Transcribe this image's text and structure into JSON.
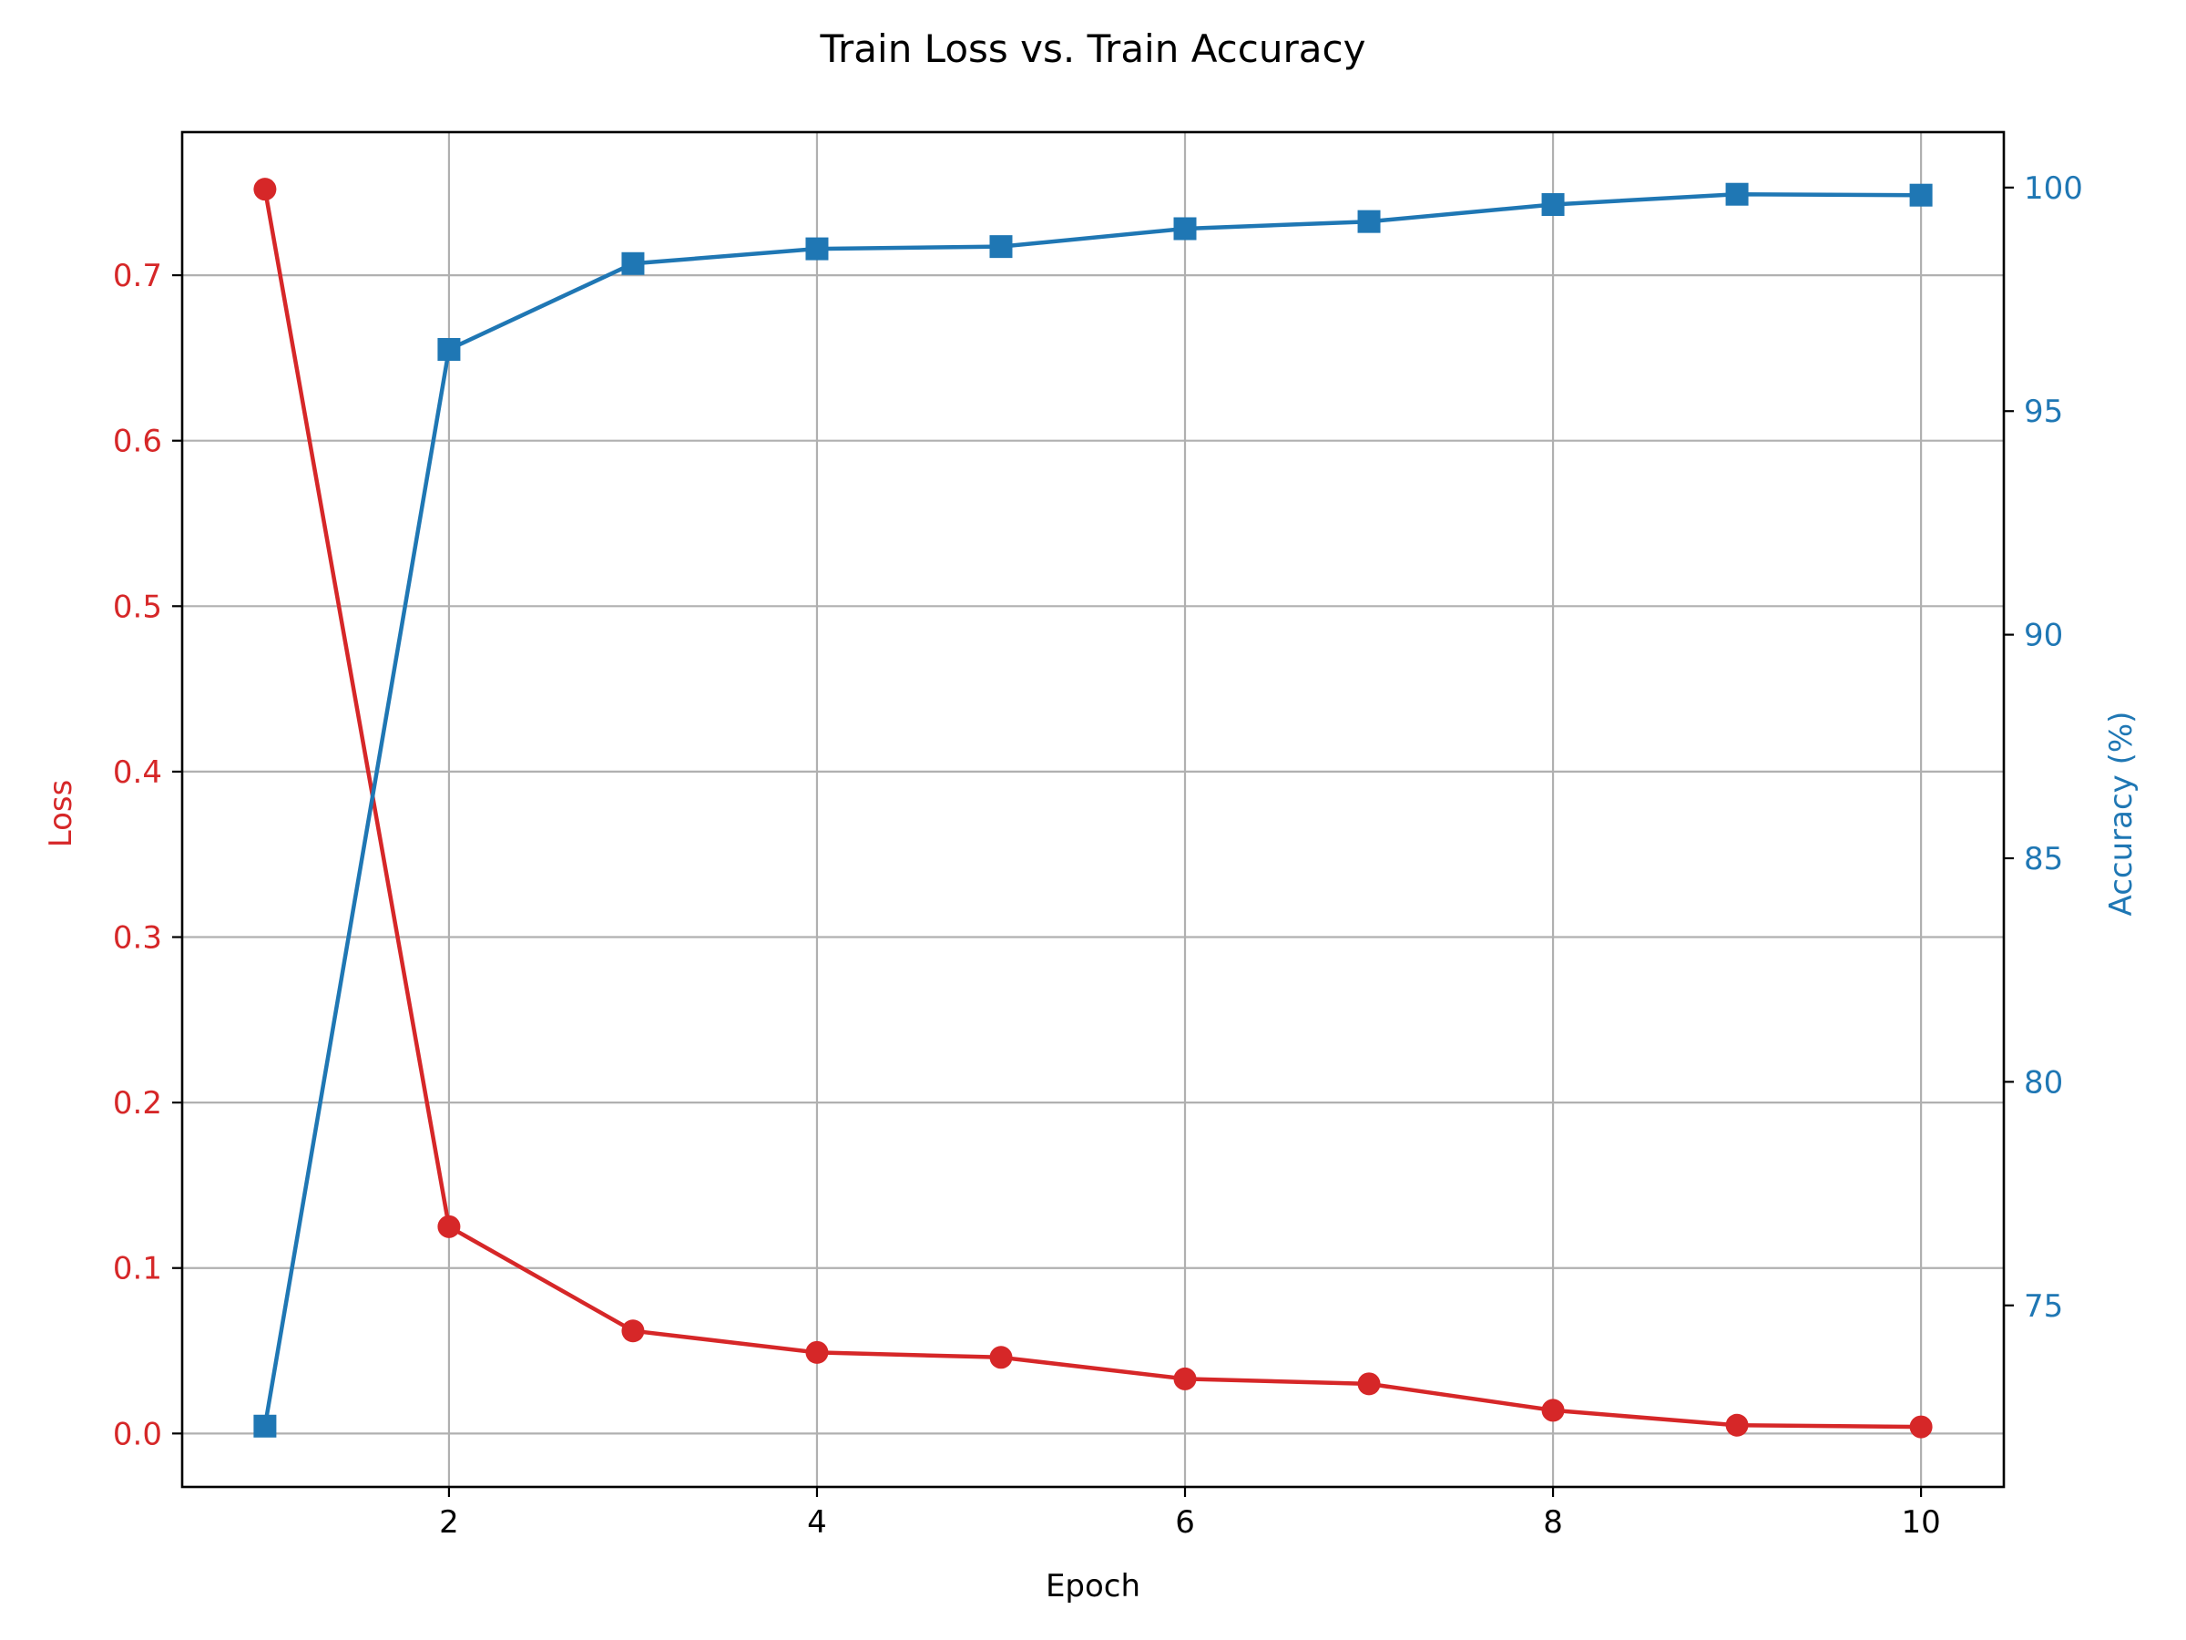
{
  "chart_data": {
    "type": "line",
    "title": "Train Loss vs. Train Accuracy",
    "xlabel": "Epoch",
    "ylabel_left": "Loss",
    "ylabel_right": "Accuracy (%)",
    "x": [
      1,
      2,
      3,
      4,
      5,
      6,
      7,
      8,
      9,
      10
    ],
    "x_ticks": [
      2,
      4,
      6,
      8,
      10
    ],
    "xlim": [
      0.55,
      10.45
    ],
    "grid": true,
    "legend": "none",
    "left_axis": {
      "ylim": [
        -0.0323,
        0.7865
      ],
      "ticks": [
        0.0,
        0.1,
        0.2,
        0.3,
        0.4,
        0.5,
        0.6,
        0.7
      ],
      "tick_labels": [
        "0.0",
        "0.1",
        "0.2",
        "0.3",
        "0.4",
        "0.5",
        "0.6",
        "0.7"
      ],
      "color": "#d62728"
    },
    "right_axis": {
      "ylim": [
        70.94,
        101.24
      ],
      "ticks": [
        75,
        80,
        85,
        90,
        95,
        100
      ],
      "tick_labels": [
        "75",
        "80",
        "85",
        "90",
        "95",
        "100"
      ],
      "color": "#1f77b4"
    },
    "series": [
      {
        "axis": "left",
        "marker": "circle",
        "color": "#d62728",
        "values": [
          0.752,
          0.125,
          0.062,
          0.049,
          0.046,
          0.033,
          0.03,
          0.014,
          0.005,
          0.004
        ]
      },
      {
        "axis": "right",
        "marker": "square",
        "color": "#1f77b4",
        "values": [
          72.3,
          96.38,
          98.3,
          98.63,
          98.68,
          99.08,
          99.24,
          99.62,
          99.85,
          99.83
        ]
      }
    ]
  }
}
